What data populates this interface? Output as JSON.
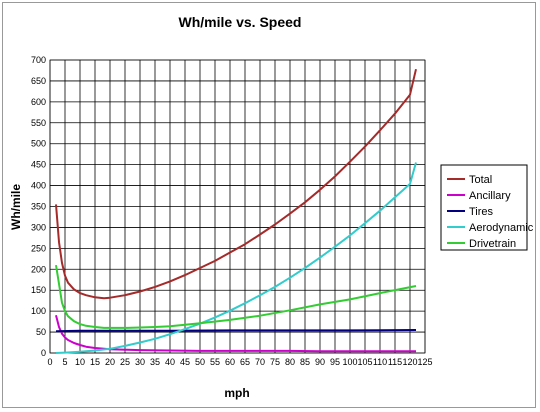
{
  "chart_data": {
    "type": "line",
    "title": "Wh/mile vs. Speed",
    "xlabel": "mph",
    "ylabel": "Wh/mile",
    "xlim": [
      0,
      125
    ],
    "ylim": [
      0,
      700
    ],
    "xticks": [
      0,
      5,
      10,
      15,
      20,
      25,
      30,
      35,
      40,
      45,
      50,
      55,
      60,
      65,
      70,
      75,
      80,
      85,
      90,
      95,
      100,
      105,
      110,
      115,
      120,
      125
    ],
    "yticks": [
      0,
      50,
      100,
      150,
      200,
      250,
      300,
      350,
      400,
      450,
      500,
      550,
      600,
      650,
      700
    ],
    "grid": true,
    "legend_position": "right",
    "series": [
      {
        "name": "Total",
        "color": "#a52a2a",
        "x": [
          2,
          3,
          4,
          5,
          6,
          8,
          10,
          12,
          15,
          18,
          20,
          25,
          30,
          35,
          40,
          45,
          50,
          55,
          60,
          65,
          70,
          75,
          80,
          85,
          90,
          95,
          100,
          105,
          110,
          115,
          120,
          122
        ],
        "y": [
          355,
          265,
          215,
          185,
          168,
          152,
          143,
          138,
          133,
          131,
          132,
          138,
          147,
          158,
          171,
          186,
          203,
          220,
          240,
          260,
          283,
          307,
          333,
          360,
          390,
          422,
          457,
          493,
          532,
          572,
          617,
          678
        ]
      },
      {
        "name": "Ancillary",
        "color": "#cc00cc",
        "x": [
          2,
          3,
          4,
          5,
          6,
          8,
          10,
          12,
          15,
          18,
          20,
          25,
          30,
          40,
          50,
          60,
          70,
          80,
          90,
          100,
          110,
          122
        ],
        "y": [
          90,
          62,
          46,
          37,
          31,
          24,
          19,
          15,
          12,
          10,
          9,
          8,
          7,
          6,
          5,
          5,
          5,
          5,
          4,
          4,
          4,
          4
        ]
      },
      {
        "name": "Tires",
        "color": "#000080",
        "x": [
          2,
          10,
          20,
          40,
          60,
          80,
          100,
          122
        ],
        "y": [
          52,
          53,
          53,
          53,
          54,
          54,
          54,
          55
        ]
      },
      {
        "name": "Aerodynamic",
        "color": "#33cccc",
        "x": [
          2,
          5,
          10,
          15,
          20,
          25,
          30,
          35,
          40,
          45,
          50,
          55,
          60,
          65,
          70,
          75,
          80,
          85,
          90,
          95,
          100,
          105,
          110,
          115,
          120,
          122
        ],
        "y": [
          0,
          1,
          3,
          6,
          10,
          17,
          25,
          34,
          45,
          57,
          70,
          85,
          101,
          119,
          138,
          158,
          180,
          203,
          228,
          254,
          281,
          310,
          340,
          372,
          404,
          455
        ]
      },
      {
        "name": "Drivetrain",
        "color": "#33cc33",
        "x": [
          2,
          3,
          4,
          5,
          6,
          8,
          10,
          12,
          15,
          18,
          20,
          25,
          30,
          35,
          40,
          50,
          60,
          70,
          80,
          90,
          100,
          110,
          122
        ],
        "y": [
          210,
          165,
          120,
          100,
          88,
          76,
          69,
          65,
          62,
          60,
          60,
          60,
          61,
          62,
          64,
          71,
          79,
          89,
          102,
          116,
          128,
          143,
          160
        ]
      }
    ]
  }
}
